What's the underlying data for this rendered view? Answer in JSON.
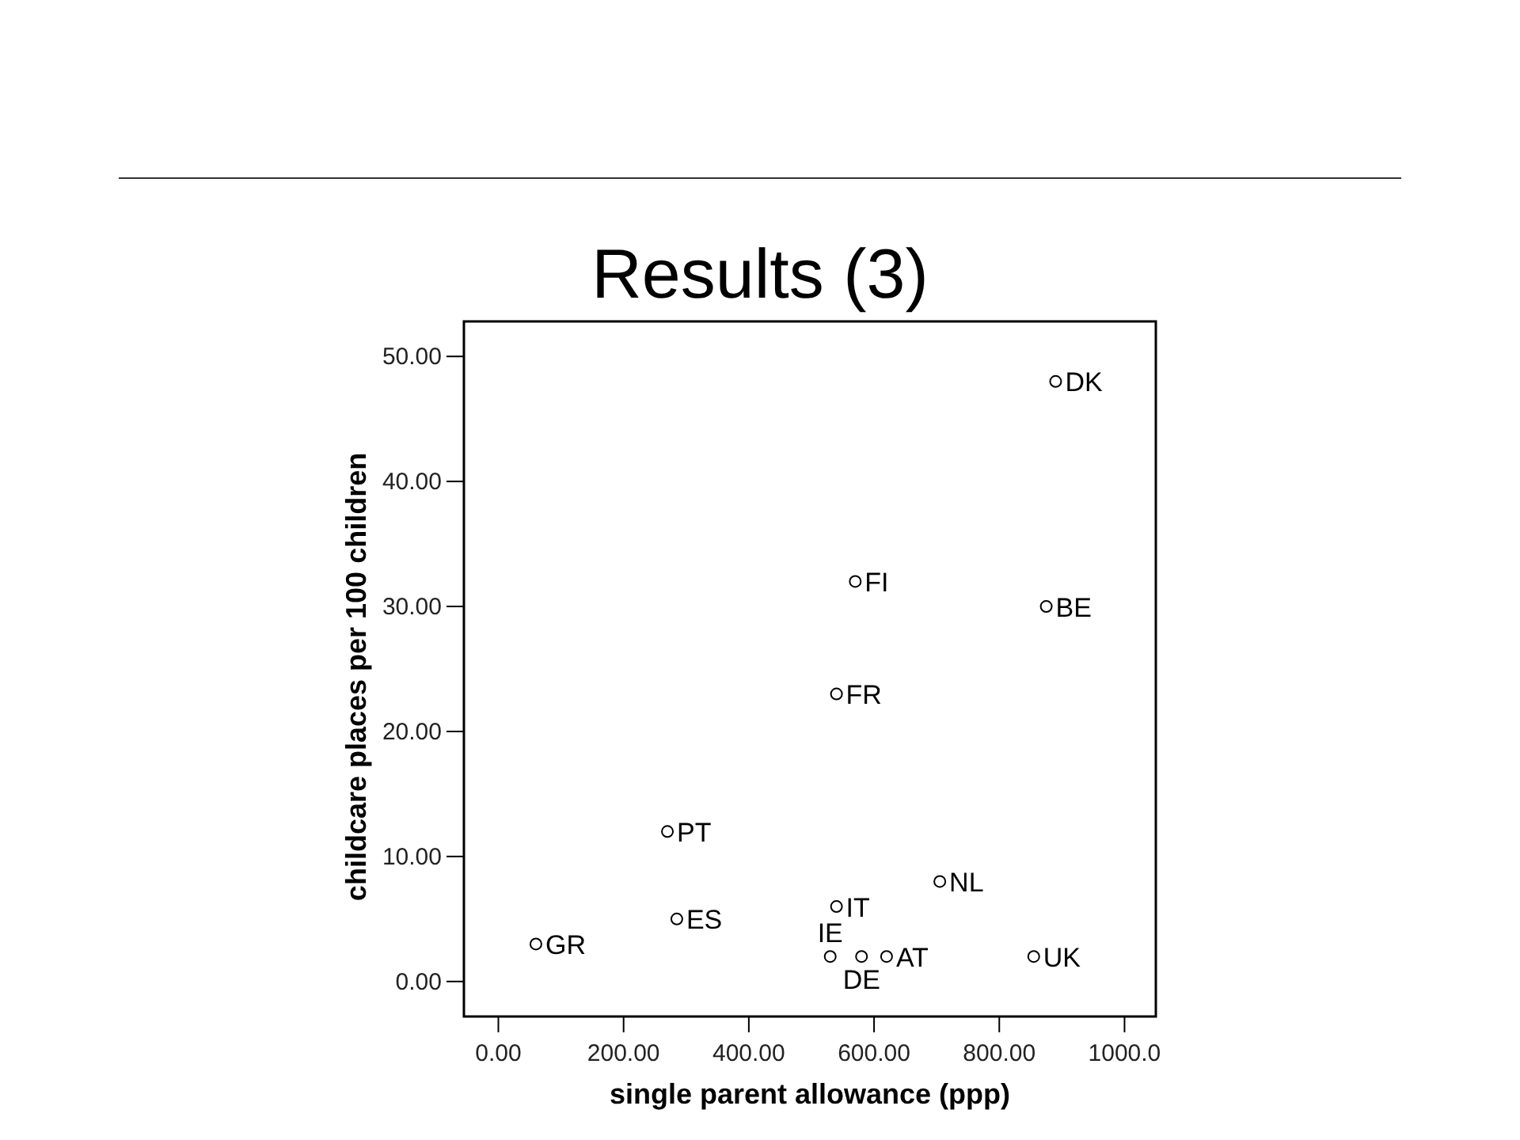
{
  "chart_data": {
    "type": "scatter",
    "title": "Results (3)",
    "xlabel": "single parent allowance (ppp)",
    "ylabel": "childcare places per 100 children",
    "x": [
      60,
      270,
      285,
      540,
      530,
      580,
      620,
      540,
      570,
      705,
      855,
      875,
      890
    ],
    "values": [
      3,
      12,
      5,
      6,
      2,
      2,
      2,
      23,
      32,
      8,
      2,
      30,
      48
    ],
    "color": "#000000",
    "marker": "circle",
    "xlim": [
      -55,
      1050
    ],
    "ylim": [
      -2.8,
      52.8
    ],
    "xticks": [
      {
        "value": 0,
        "label": "0.00"
      },
      {
        "value": 200,
        "label": "200.00"
      },
      {
        "value": 400,
        "label": "400.00"
      },
      {
        "value": 600,
        "label": "600.00"
      },
      {
        "value": 800,
        "label": "800.00"
      },
      {
        "value": 1000,
        "label": "1000.0"
      }
    ],
    "yticks": [
      {
        "value": 0,
        "label": "0.00"
      },
      {
        "value": 10,
        "label": "10.00"
      },
      {
        "value": 20,
        "label": "20.00"
      },
      {
        "value": 30,
        "label": "30.00"
      },
      {
        "value": 40,
        "label": "40.00"
      },
      {
        "value": 50,
        "label": "50.00"
      }
    ],
    "annotations": [
      {
        "text": "GR",
        "x": 60,
        "y": 3
      },
      {
        "text": "PT",
        "x": 270,
        "y": 12
      },
      {
        "text": "ES",
        "x": 285,
        "y": 5
      },
      {
        "text": "IT",
        "x": 540,
        "y": 6
      },
      {
        "text": "IE",
        "x": 530,
        "y": 2
      },
      {
        "text": "DE",
        "x": 580,
        "y": 2
      },
      {
        "text": "AT",
        "x": 620,
        "y": 2
      },
      {
        "text": "FR",
        "x": 540,
        "y": 23
      },
      {
        "text": "FI",
        "x": 570,
        "y": 32
      },
      {
        "text": "NL",
        "x": 705,
        "y": 8
      },
      {
        "text": "UK",
        "x": 855,
        "y": 2
      },
      {
        "text": "BE",
        "x": 875,
        "y": 30
      },
      {
        "text": "DK",
        "x": 890,
        "y": 48
      }
    ]
  }
}
